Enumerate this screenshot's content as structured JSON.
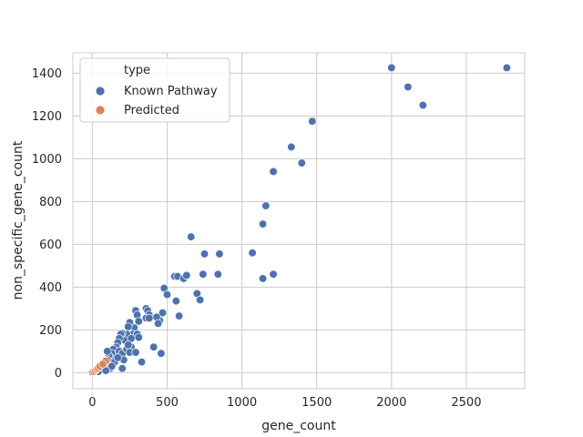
{
  "chart_data": {
    "type": "scatter",
    "title": "",
    "xlabel": "gene_count",
    "ylabel": "non_specific_gene_count",
    "xlim": [
      -130,
      2890
    ],
    "ylim": [
      -75,
      1495
    ],
    "xticks": [
      0,
      500,
      1000,
      1500,
      2000,
      2500
    ],
    "yticks": [
      0,
      200,
      400,
      600,
      800,
      1000,
      1200,
      1400
    ],
    "grid": true,
    "legend": {
      "title": "type",
      "placement": "top-left",
      "entries": [
        "Known Pathway",
        "Predicted"
      ]
    },
    "series": [
      {
        "name": "Known Pathway",
        "color": "#4c72b0",
        "points": [
          [
            2000,
            1425
          ],
          [
            2770,
            1425
          ],
          [
            2110,
            1335
          ],
          [
            2210,
            1250
          ],
          [
            1470,
            1175
          ],
          [
            1330,
            1055
          ],
          [
            1210,
            940
          ],
          [
            1400,
            980
          ],
          [
            1160,
            780
          ],
          [
            1140,
            695
          ],
          [
            660,
            635
          ],
          [
            1070,
            560
          ],
          [
            750,
            555
          ],
          [
            850,
            555
          ],
          [
            1140,
            440
          ],
          [
            1210,
            460
          ],
          [
            740,
            460
          ],
          [
            840,
            460
          ],
          [
            550,
            450
          ],
          [
            570,
            450
          ],
          [
            610,
            440
          ],
          [
            630,
            455
          ],
          [
            560,
            335
          ],
          [
            700,
            370
          ],
          [
            720,
            340
          ],
          [
            480,
            395
          ],
          [
            500,
            365
          ],
          [
            580,
            265
          ],
          [
            450,
            245
          ],
          [
            470,
            280
          ],
          [
            430,
            260
          ],
          [
            440,
            230
          ],
          [
            460,
            90
          ],
          [
            410,
            120
          ],
          [
            330,
            50
          ],
          [
            360,
            300
          ],
          [
            370,
            290
          ],
          [
            380,
            270
          ],
          [
            360,
            255
          ],
          [
            380,
            255
          ],
          [
            290,
            290
          ],
          [
            300,
            270
          ],
          [
            310,
            240
          ],
          [
            280,
            210
          ],
          [
            270,
            180
          ],
          [
            300,
            180
          ],
          [
            250,
            235
          ],
          [
            240,
            215
          ],
          [
            230,
            180
          ],
          [
            220,
            150
          ],
          [
            200,
            185
          ],
          [
            190,
            180
          ],
          [
            180,
            160
          ],
          [
            170,
            140
          ],
          [
            160,
            120
          ],
          [
            150,
            100
          ],
          [
            140,
            110
          ],
          [
            130,
            90
          ],
          [
            120,
            70
          ],
          [
            110,
            80
          ],
          [
            100,
            60
          ],
          [
            90,
            40
          ],
          [
            80,
            30
          ],
          [
            70,
            20
          ],
          [
            60,
            15
          ],
          [
            50,
            10
          ],
          [
            180,
            100
          ],
          [
            200,
            90
          ],
          [
            230,
            110
          ],
          [
            260,
            120
          ],
          [
            250,
            95
          ],
          [
            290,
            95
          ],
          [
            210,
            60
          ],
          [
            200,
            20
          ],
          [
            120,
            20
          ],
          [
            150,
            50
          ],
          [
            170,
            70
          ],
          [
            260,
            160
          ],
          [
            240,
            130
          ],
          [
            310,
            165
          ],
          [
            100,
            100
          ],
          [
            130,
            30
          ],
          [
            90,
            10
          ],
          [
            40,
            5
          ],
          [
            30,
            20
          ]
        ]
      },
      {
        "name": "Predicted",
        "color": "#dd8452",
        "points": [
          [
            0,
            3
          ],
          [
            10,
            5
          ],
          [
            20,
            12
          ],
          [
            30,
            18
          ],
          [
            40,
            22
          ],
          [
            50,
            30
          ],
          [
            90,
            55
          ],
          [
            70,
            40
          ]
        ]
      }
    ]
  }
}
